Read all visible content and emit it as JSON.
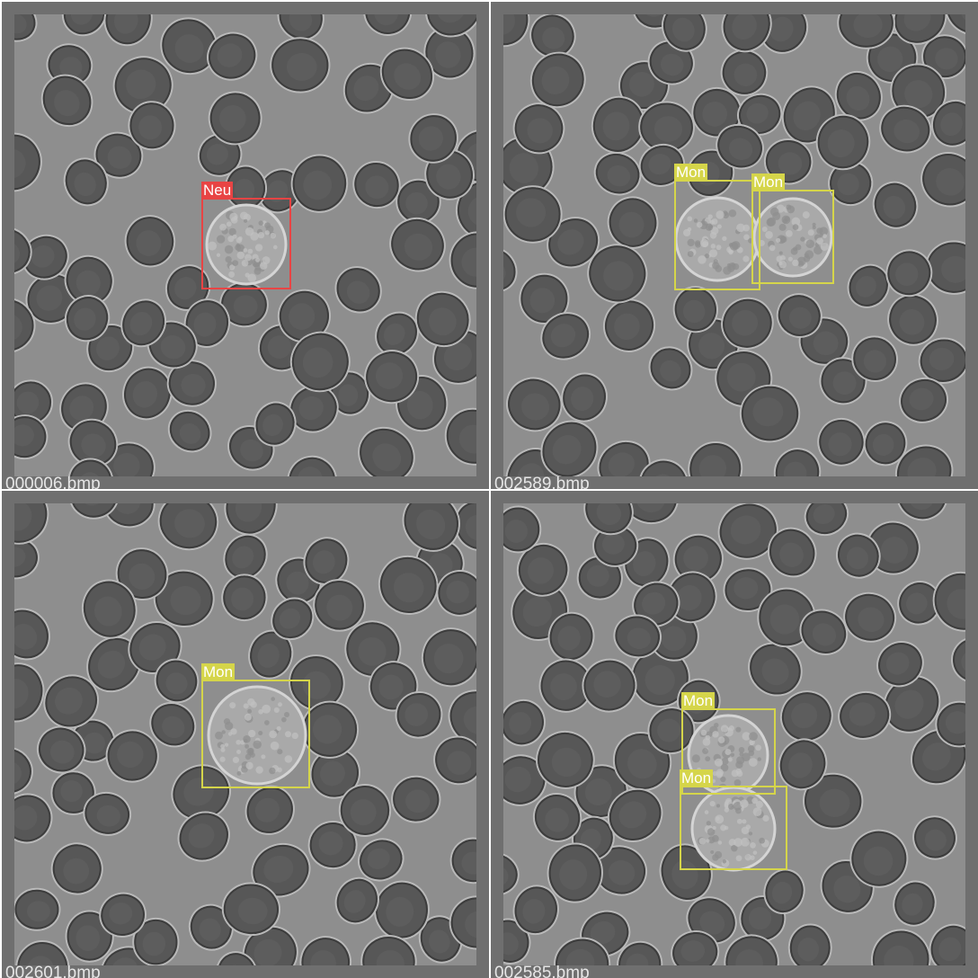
{
  "colors": {
    "neu": "#e84444",
    "mon": "#d5d54a",
    "tile_frame": "#6f6f6f",
    "background_plasma": "#8e8e8e",
    "rbc_fill": "#575757",
    "rbc_rim": "#b9b9b9"
  },
  "tiles": [
    {
      "filename": "000006.bmp",
      "detections": [
        {
          "label": "Neu",
          "color_key": "neu"
        }
      ]
    },
    {
      "filename": "002589.bmp",
      "detections": [
        {
          "label": "Mon",
          "color_key": "mon"
        },
        {
          "label": "Mon",
          "color_key": "mon"
        }
      ]
    },
    {
      "filename": "002601.bmp",
      "detections": [
        {
          "label": "Mon",
          "color_key": "mon"
        }
      ]
    },
    {
      "filename": "002585.bmp",
      "detections": [
        {
          "label": "Mon",
          "color_key": "mon"
        },
        {
          "label": "Mon",
          "color_key": "mon"
        }
      ]
    }
  ]
}
